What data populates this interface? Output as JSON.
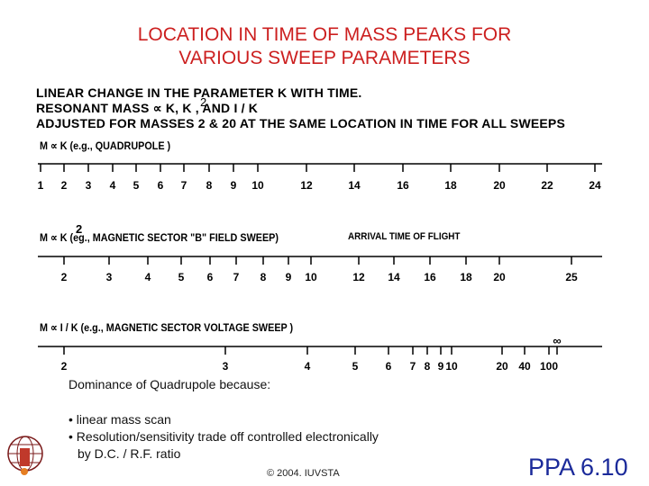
{
  "title": {
    "line1": "LOCATION IN TIME OF MASS PEAKS FOR",
    "line2": "VARIOUS SWEEP PARAMETERS"
  },
  "header_lines": [
    "LINEAR CHANGE IN THE PARAMETER K WITH TIME.",
    "RESONANT MASS ∝ K, K , AND I / K",
    "ADJUSTED FOR MASSES 2 & 20 AT THE SAME LOCATION IN TIME FOR ALL SWEEPS"
  ],
  "header_superscript": "2",
  "scales": [
    {
      "label": "M ∝ K  (e.g.,  QUADRUPOLE )",
      "extra": "",
      "ticks": [
        "1",
        "2",
        "3",
        "4",
        "5",
        "6",
        "7",
        "8",
        "9",
        "10",
        "12",
        "14",
        "16",
        "18",
        "20",
        "22",
        "24"
      ]
    },
    {
      "label": "M ∝ K  (eg.,  MAGNETIC  SECTOR \"B\" FIELD  SWEEP)",
      "label_superscript": "2",
      "extra": "ARRIVAL TIME OF FLIGHT",
      "ticks": [
        "2",
        "3",
        "4",
        "5",
        "6",
        "7",
        "8",
        "9",
        "10",
        "12",
        "14",
        "16",
        "18",
        "20",
        "25"
      ]
    },
    {
      "label": "M ∝ I / K  (e.g.,   MAGNETIC  SECTOR VOLTAGE SWEEP )",
      "extra": "",
      "ticks": [
        "2",
        "3",
        "4",
        "5",
        "6",
        "7",
        "8",
        "9",
        "10",
        "20",
        "40",
        "100"
      ],
      "infinity": "∞"
    }
  ],
  "notes": {
    "heading": "Dominance of Quadrupole because:",
    "bullet1": "• linear mass scan",
    "bullet2": "• Resolution/sensitivity trade off controlled electronically",
    "bullet2_cont": "by D.C. / R.F. ratio"
  },
  "footer": {
    "copyright": "© 2004. IUVSTA",
    "slide_id": "PPA 6.10"
  },
  "colors": {
    "title": "#cc1f1f",
    "slide_id": "#1b2a9a"
  }
}
